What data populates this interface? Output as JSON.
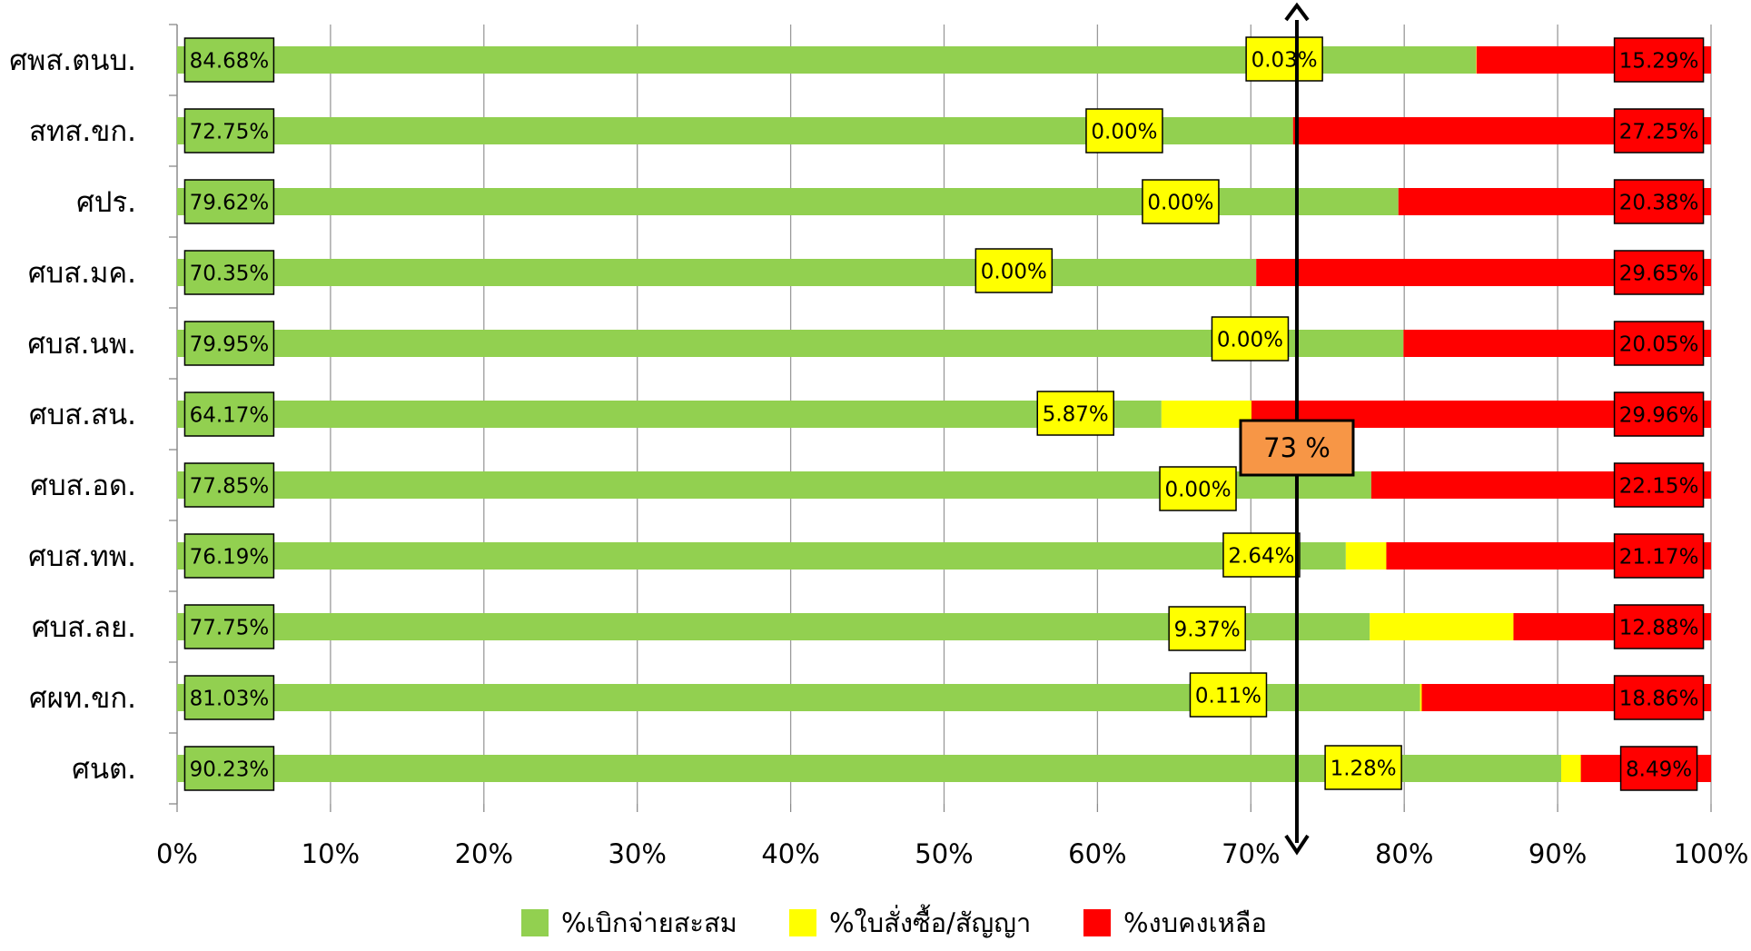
{
  "chart_data": {
    "type": "bar",
    "orientation": "horizontal",
    "stacked": true,
    "percent_stacked": true,
    "categories": [
      "ศพส.ตนบ.",
      "สทส.ขก.",
      "ศปร.",
      "ศบส.มค.",
      "ศบส.นพ.",
      "ศบส.สน.",
      "ศบส.อด.",
      "ศบส.ทพ.",
      "ศบส.ลย.",
      "ศผท.ขก.",
      "ศนต."
    ],
    "series": [
      {
        "name": "%เบิกจ่ายสะสม",
        "color": "#92D050",
        "values": [
          84.68,
          72.75,
          79.62,
          70.35,
          79.95,
          64.17,
          77.85,
          76.19,
          77.75,
          81.03,
          90.23
        ],
        "labels": [
          "84.68%",
          "72.75%",
          "79.62%",
          "70.35%",
          "79.95%",
          "64.17%",
          "77.85%",
          "76.19%",
          "77.75%",
          "81.03%",
          "90.23%"
        ]
      },
      {
        "name": "%ใบสั่งซื้อ/สัญญา",
        "color": "#FFFF00",
        "values": [
          0.03,
          0.0,
          0.0,
          0.0,
          0.0,
          5.87,
          0.0,
          2.64,
          9.37,
          0.11,
          1.28
        ],
        "labels": [
          "0.03%",
          "0.00%",
          "0.00%",
          "0.00%",
          "0.00%",
          "5.87%",
          "0.00%",
          "2.64%",
          "9.37%",
          "0.11%",
          "1.28%"
        ]
      },
      {
        "name": "%งบคงเหลือ",
        "color": "#FF0000",
        "values": [
          15.29,
          27.25,
          20.38,
          29.65,
          20.05,
          29.96,
          22.15,
          21.17,
          12.88,
          18.86,
          8.49
        ],
        "labels": [
          "15.29%",
          "27.25%",
          "20.38%",
          "29.65%",
          "20.05%",
          "29.96%",
          "22.15%",
          "21.17%",
          "12.88%",
          "18.86%",
          "8.49%"
        ]
      }
    ],
    "xlim": [
      0,
      100
    ],
    "x_ticks": [
      "0%",
      "10%",
      "20%",
      "30%",
      "40%",
      "50%",
      "60%",
      "70%",
      "80%",
      "90%",
      "100%"
    ],
    "grid": true,
    "legend_position": "bottom",
    "target_line": {
      "value": 73,
      "label": "73 %",
      "color": "#F79646"
    }
  }
}
